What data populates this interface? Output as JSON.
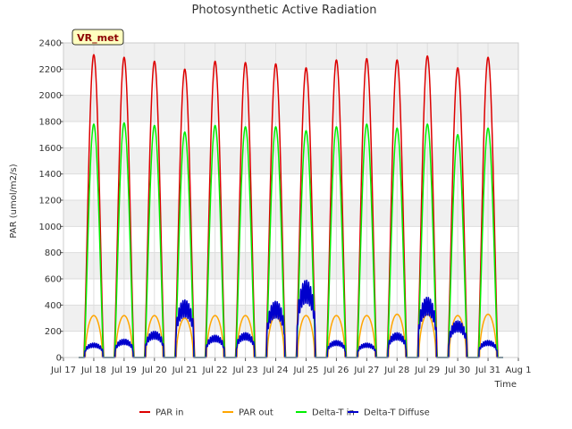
{
  "chart_data": {
    "type": "line",
    "title": "Photosynthetic Active Radiation",
    "xlabel": "Time",
    "ylabel": "PAR (umol/m2/s)",
    "ylim": [
      0,
      2400
    ],
    "yticks": [
      0,
      200,
      400,
      600,
      800,
      1000,
      1200,
      1400,
      1600,
      1800,
      2000,
      2200,
      2400
    ],
    "x_range_days": [
      17,
      32
    ],
    "xtick_labels": [
      "Jul 17",
      "Jul 18",
      "Jul 19",
      "Jul 20",
      "Jul 21",
      "Jul 22",
      "Jul 23",
      "Jul 24",
      "Jul 25",
      "Jul 26",
      "Jul 27",
      "Jul 28",
      "Jul 29",
      "Jul 30",
      "Jul 31",
      "Aug 1"
    ],
    "grid": true,
    "legend_position": "bottom",
    "station_label": "VR_met",
    "days": [
      "Jul 18",
      "Jul 19",
      "Jul 20",
      "Jul 21",
      "Jul 22",
      "Jul 23",
      "Jul 24",
      "Jul 25",
      "Jul 26",
      "Jul 27",
      "Jul 28",
      "Jul 29",
      "Jul 30",
      "Jul 31"
    ],
    "series": [
      {
        "name": "PAR in",
        "color": "#dd0000",
        "daily_peak": [
          2310,
          2290,
          2260,
          2200,
          2260,
          2250,
          2240,
          2210,
          2270,
          2280,
          2270,
          2300,
          2210,
          2290
        ]
      },
      {
        "name": "PAR out",
        "color": "#ffa500",
        "daily_peak": [
          320,
          320,
          320,
          300,
          320,
          320,
          320,
          320,
          320,
          320,
          330,
          330,
          320,
          330
        ]
      },
      {
        "name": "Delta-T in",
        "color": "#00ee00",
        "daily_peak": [
          1780,
          1790,
          1770,
          1720,
          1770,
          1760,
          1760,
          1730,
          1760,
          1780,
          1750,
          1780,
          1700,
          1750
        ]
      },
      {
        "name": "Delta-T Diffuse",
        "color": "#0000cc",
        "daily_peak": [
          110,
          140,
          200,
          440,
          170,
          190,
          430,
          590,
          130,
          110,
          190,
          460,
          280,
          130
        ]
      }
    ]
  }
}
